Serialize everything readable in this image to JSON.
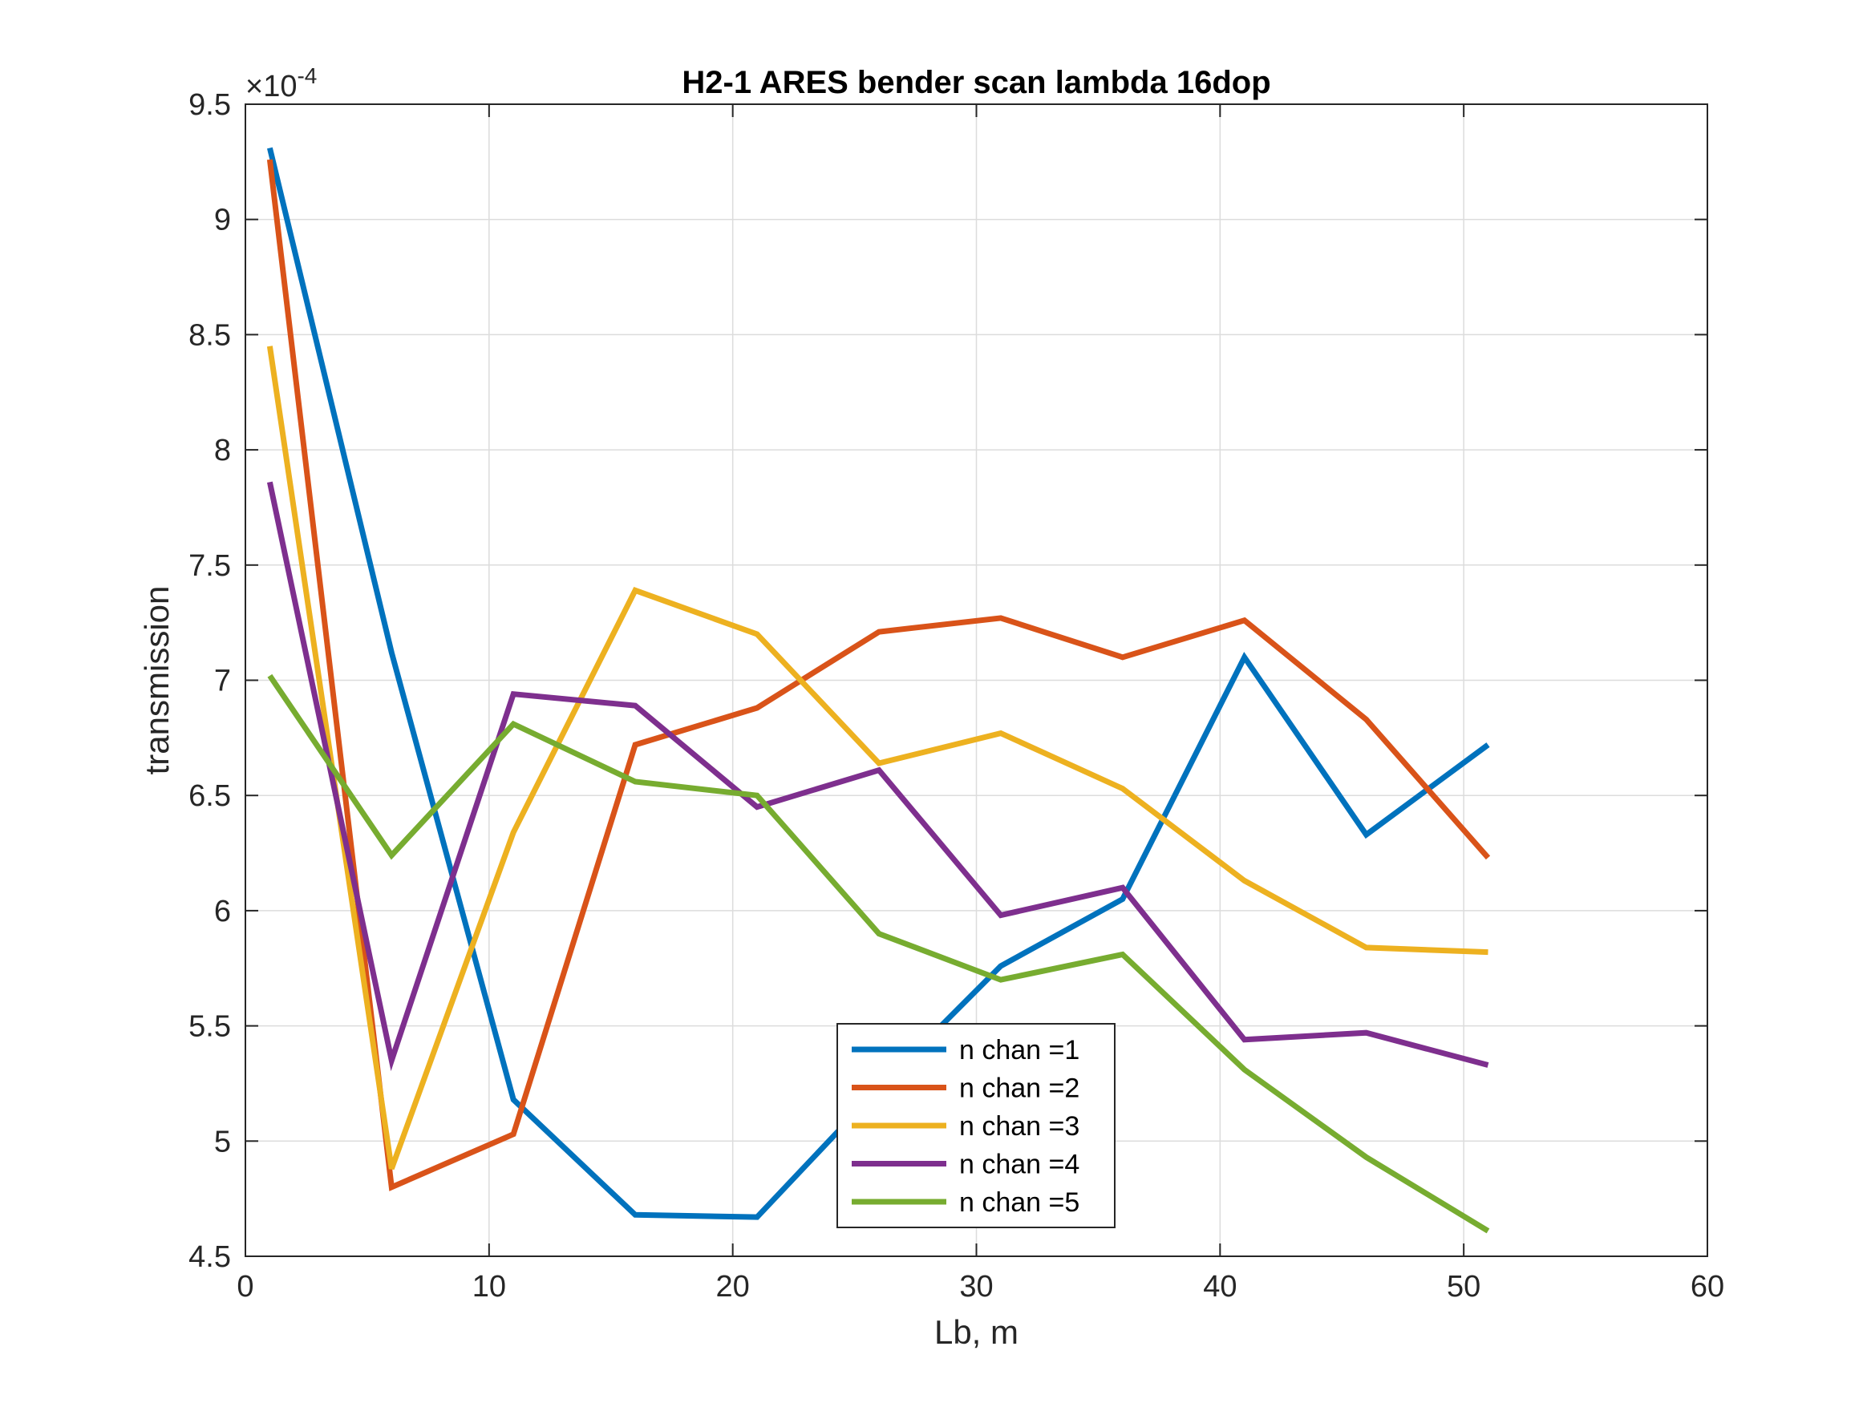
{
  "chart_data": {
    "type": "line",
    "title": "H2-1 ARES bender scan lambda 16dop",
    "xlabel": "Lb, m",
    "ylabel": "transmission",
    "exponent_label": "×10",
    "exponent_power": "-4",
    "xlim": [
      0,
      60
    ],
    "ylim": [
      4.5,
      9.5
    ],
    "xticks": [
      "0",
      "10",
      "20",
      "30",
      "40",
      "50",
      "60"
    ],
    "yticks": [
      "4.5",
      "5",
      "5.5",
      "6",
      "6.5",
      "7",
      "7.5",
      "8",
      "8.5",
      "9",
      "9.5"
    ],
    "grid": true,
    "legend_position": "bottom-center",
    "x": [
      1,
      6,
      11,
      16,
      21,
      26,
      31,
      36,
      41,
      46,
      51
    ],
    "series": [
      {
        "name": "n chan =1",
        "color": "#0072BD",
        "values": [
          9.31,
          7.12,
          5.18,
          4.68,
          4.67,
          5.23,
          5.76,
          6.05,
          7.1,
          6.33,
          6.72
        ]
      },
      {
        "name": "n chan =2",
        "color": "#D95319",
        "values": [
          9.26,
          4.8,
          5.03,
          6.72,
          6.88,
          7.21,
          7.27,
          7.1,
          7.26,
          6.83,
          6.23
        ]
      },
      {
        "name": "n chan =3",
        "color": "#EDB120",
        "values": [
          8.45,
          4.88,
          6.34,
          7.39,
          7.2,
          6.64,
          6.77,
          6.53,
          6.13,
          5.84,
          5.82
        ]
      },
      {
        "name": "n chan =4",
        "color": "#7E2F8E",
        "values": [
          7.86,
          5.35,
          6.94,
          6.89,
          6.45,
          6.61,
          5.98,
          6.1,
          5.44,
          5.47,
          5.33
        ]
      },
      {
        "name": "n chan =5",
        "color": "#77AC30",
        "values": [
          7.02,
          6.24,
          6.81,
          6.56,
          6.5,
          5.9,
          5.7,
          5.81,
          5.31,
          4.93,
          4.61
        ]
      }
    ]
  }
}
